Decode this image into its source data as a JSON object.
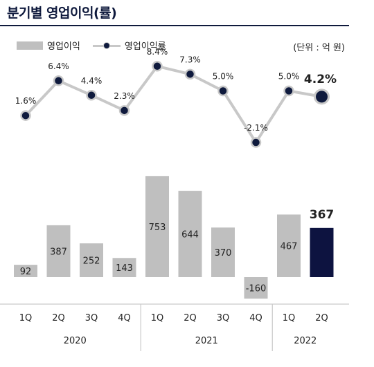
{
  "title": "분기별 영업이익(률)",
  "legend": {
    "bar_label": "영업이익",
    "line_label": "영업이익률"
  },
  "unit": "(단위 : 억 원)",
  "colors": {
    "bar": "#bfbfbf",
    "bar_highlight": "#0d1340",
    "line": "#c8c8c8",
    "marker": "#0f1a3d",
    "rule": "#0f1a3d"
  },
  "chart_data": {
    "type": "bar",
    "categories": [
      "1Q",
      "2Q",
      "3Q",
      "4Q",
      "1Q",
      "2Q",
      "3Q",
      "4Q",
      "1Q",
      "2Q"
    ],
    "years": [
      {
        "label": "2020",
        "quarters": 4
      },
      {
        "label": "2021",
        "quarters": 4
      },
      {
        "label": "2022",
        "quarters": 2
      }
    ],
    "series": [
      {
        "name": "영업이익",
        "type": "bar",
        "values": [
          92,
          387,
          252,
          143,
          753,
          644,
          370,
          -160,
          467,
          367
        ],
        "labels": [
          "92",
          "387",
          "252",
          "143",
          "753",
          "644",
          "370",
          "-160",
          "467",
          "367"
        ]
      },
      {
        "name": "영업이익률",
        "type": "line",
        "values": [
          1.6,
          6.4,
          4.4,
          2.3,
          8.4,
          7.3,
          5.0,
          -2.1,
          5.0,
          4.2
        ],
        "labels": [
          "1.6%",
          "6.4%",
          "4.4%",
          "2.3%",
          "8.4%",
          "7.3%",
          "5.0%",
          "-2.1%",
          "5.0%",
          "4.2%"
        ]
      }
    ],
    "highlight_index": 9
  }
}
